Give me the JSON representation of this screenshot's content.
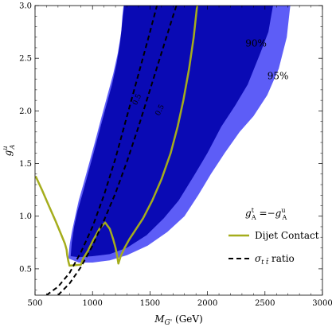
{
  "chart_data": {
    "type": "area",
    "xlabel": "M_G' (GeV)",
    "ylabel": "g_A^u",
    "xlim": [
      500,
      3000
    ],
    "ylim": [
      0.25,
      3.0
    ],
    "x_ticks": [
      500,
      1000,
      1500,
      2000,
      2500,
      3000
    ],
    "x_tick_labels": [
      "500",
      "1000",
      "1500",
      "2000",
      "2500",
      "3000"
    ],
    "y_ticks": [
      0.5,
      1.0,
      1.5,
      2.0,
      2.5,
      3.0
    ],
    "y_tick_labels": [
      "0.5",
      "1.0",
      "1.5",
      "2.0",
      "2.5",
      "3.0"
    ],
    "grid": false,
    "colors": {
      "cl95": "#5d5df7",
      "cl90": "#0a0ab4",
      "dijet": "#a5ad1c",
      "ratio": "#000000"
    },
    "series": [
      {
        "name": "95%",
        "kind": "region",
        "points": [
          [
            790,
            0.6
          ],
          [
            800,
            0.72
          ],
          [
            820,
            0.85
          ],
          [
            850,
            1.0
          ],
          [
            880,
            1.15
          ],
          [
            920,
            1.3
          ],
          [
            970,
            1.5
          ],
          [
            1020,
            1.7
          ],
          [
            1080,
            1.95
          ],
          [
            1130,
            2.15
          ],
          [
            1180,
            2.35
          ],
          [
            1220,
            2.55
          ],
          [
            1250,
            2.75
          ],
          [
            1260,
            2.9
          ],
          [
            1270,
            3.0
          ],
          [
            2720,
            3.0
          ],
          [
            2690,
            2.7
          ],
          [
            2620,
            2.4
          ],
          [
            2520,
            2.15
          ],
          [
            2400,
            1.95
          ],
          [
            2280,
            1.8
          ],
          [
            2150,
            1.6
          ],
          [
            2030,
            1.4
          ],
          [
            1920,
            1.2
          ],
          [
            1800,
            1.0
          ],
          [
            1650,
            0.85
          ],
          [
            1480,
            0.72
          ],
          [
            1300,
            0.63
          ],
          [
            1150,
            0.58
          ],
          [
            1000,
            0.56
          ],
          [
            880,
            0.56
          ]
        ]
      },
      {
        "name": "90%",
        "kind": "region",
        "points": [
          [
            810,
            0.62
          ],
          [
            820,
            0.75
          ],
          [
            840,
            0.9
          ],
          [
            870,
            1.05
          ],
          [
            910,
            1.2
          ],
          [
            960,
            1.4
          ],
          [
            1010,
            1.6
          ],
          [
            1070,
            1.85
          ],
          [
            1120,
            2.05
          ],
          [
            1170,
            2.25
          ],
          [
            1210,
            2.45
          ],
          [
            1240,
            2.65
          ],
          [
            1260,
            2.85
          ],
          [
            1275,
            3.0
          ],
          [
            2570,
            3.0
          ],
          [
            2530,
            2.75
          ],
          [
            2460,
            2.55
          ],
          [
            2350,
            2.25
          ],
          [
            2240,
            2.05
          ],
          [
            2120,
            1.85
          ],
          [
            2000,
            1.6
          ],
          [
            1880,
            1.38
          ],
          [
            1750,
            1.15
          ],
          [
            1620,
            0.98
          ],
          [
            1470,
            0.82
          ],
          [
            1300,
            0.7
          ],
          [
            1150,
            0.64
          ],
          [
            1000,
            0.62
          ],
          [
            880,
            0.61
          ]
        ]
      },
      {
        "name": "Dijet Contact",
        "kind": "line",
        "points": [
          [
            505,
            1.38
          ],
          [
            560,
            1.25
          ],
          [
            620,
            1.1
          ],
          [
            680,
            0.95
          ],
          [
            730,
            0.82
          ],
          [
            760,
            0.74
          ],
          [
            775,
            0.68
          ],
          [
            780,
            0.63
          ],
          [
            790,
            0.57
          ],
          [
            800,
            0.53
          ],
          [
            900,
            0.54
          ],
          [
            920,
            0.6
          ],
          [
            960,
            0.67
          ],
          [
            1000,
            0.76
          ],
          [
            1060,
            0.88
          ],
          [
            1110,
            0.94
          ],
          [
            1150,
            0.88
          ],
          [
            1180,
            0.78
          ],
          [
            1200,
            0.7
          ],
          [
            1215,
            0.62
          ],
          [
            1225,
            0.55
          ],
          [
            1245,
            0.62
          ],
          [
            1280,
            0.7
          ],
          [
            1320,
            0.78
          ],
          [
            1380,
            0.88
          ],
          [
            1440,
            0.98
          ],
          [
            1520,
            1.15
          ],
          [
            1600,
            1.35
          ],
          [
            1680,
            1.6
          ],
          [
            1740,
            1.85
          ],
          [
            1790,
            2.1
          ],
          [
            1840,
            2.4
          ],
          [
            1880,
            2.7
          ],
          [
            1910,
            3.0
          ]
        ]
      },
      {
        "name": "σ ratio",
        "kind": "dashed",
        "points": [
          [
            600,
            0.25
          ],
          [
            700,
            0.33
          ],
          [
            800,
            0.46
          ],
          [
            900,
            0.66
          ],
          [
            1000,
            0.9
          ],
          [
            1100,
            1.2
          ],
          [
            1200,
            1.55
          ],
          [
            1300,
            1.95
          ],
          [
            1400,
            2.35
          ],
          [
            1500,
            2.75
          ],
          [
            1560,
            3.0
          ]
        ]
      },
      {
        "name": "σ ratio (2)",
        "kind": "dashed",
        "points": [
          [
            700,
            0.25
          ],
          [
            800,
            0.36
          ],
          [
            900,
            0.52
          ],
          [
            1000,
            0.72
          ],
          [
            1100,
            0.96
          ],
          [
            1200,
            1.22
          ],
          [
            1300,
            1.52
          ],
          [
            1400,
            1.85
          ],
          [
            1500,
            2.2
          ],
          [
            1600,
            2.55
          ],
          [
            1700,
            2.9
          ],
          [
            1730,
            3.0
          ]
        ]
      }
    ],
    "annotations": {
      "cl90_label": "90%",
      "cl95_label": "95%",
      "contour_labels": [
        "0.5",
        "0.5"
      ],
      "condition": "g_A^t = −g_A^u",
      "legend_dijet": "Dijet Contact",
      "legend_ratio_sigma": "σ",
      "legend_ratio_sub": "t t̄",
      "legend_ratio_word": "ratio"
    },
    "legend_position": "bottom-right"
  }
}
